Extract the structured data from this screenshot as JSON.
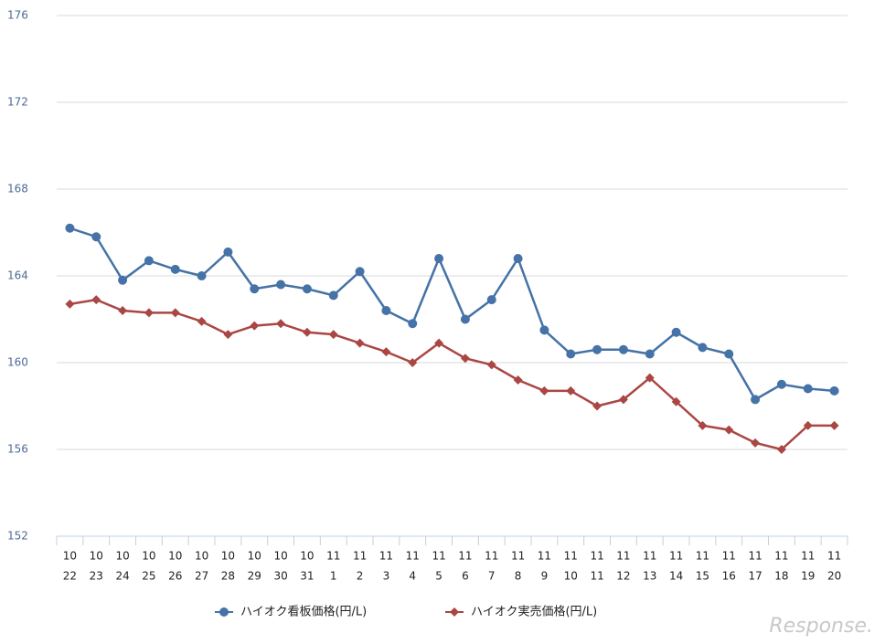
{
  "chart_data": {
    "type": "line",
    "categories": [
      [
        "10",
        "22"
      ],
      [
        "10",
        "23"
      ],
      [
        "10",
        "24"
      ],
      [
        "10",
        "25"
      ],
      [
        "10",
        "26"
      ],
      [
        "10",
        "27"
      ],
      [
        "10",
        "28"
      ],
      [
        "10",
        "29"
      ],
      [
        "10",
        "30"
      ],
      [
        "10",
        "31"
      ],
      [
        "11",
        "1"
      ],
      [
        "11",
        "2"
      ],
      [
        "11",
        "3"
      ],
      [
        "11",
        "4"
      ],
      [
        "11",
        "5"
      ],
      [
        "11",
        "6"
      ],
      [
        "11",
        "7"
      ],
      [
        "11",
        "8"
      ],
      [
        "11",
        "9"
      ],
      [
        "11",
        "10"
      ],
      [
        "11",
        "11"
      ],
      [
        "11",
        "12"
      ],
      [
        "11",
        "13"
      ],
      [
        "11",
        "14"
      ],
      [
        "11",
        "15"
      ],
      [
        "11",
        "16"
      ],
      [
        "11",
        "17"
      ],
      [
        "11",
        "18"
      ],
      [
        "11",
        "19"
      ],
      [
        "11",
        "20"
      ]
    ],
    "series": [
      {
        "name": "ハイオク看板価格(円/L)",
        "color": "#4572a7",
        "marker": "circle",
        "values": [
          166.2,
          165.8,
          163.8,
          164.7,
          164.3,
          164.0,
          165.1,
          163.4,
          163.6,
          163.4,
          163.1,
          164.2,
          162.4,
          161.8,
          164.8,
          162.0,
          162.9,
          164.8,
          161.5,
          160.4,
          160.6,
          160.6,
          160.4,
          161.4,
          160.7,
          160.4,
          158.3,
          159.0,
          158.8,
          158.7
        ]
      },
      {
        "name": "ハイオク実売価格(円/L)",
        "color": "#aa4643",
        "marker": "diamond",
        "values": [
          162.7,
          162.9,
          162.4,
          162.3,
          162.3,
          161.9,
          161.3,
          161.7,
          161.8,
          161.4,
          161.3,
          160.9,
          160.5,
          160.0,
          160.9,
          160.2,
          159.9,
          159.2,
          158.7,
          158.7,
          158.0,
          158.3,
          159.3,
          158.2,
          157.1,
          156.9,
          156.3,
          156.0,
          157.1,
          157.1
        ]
      }
    ],
    "ylim": [
      152,
      176
    ],
    "yticks": [
      152,
      156,
      160,
      164,
      168,
      172,
      176
    ],
    "grid": true,
    "legend": "bottom",
    "watermark": "Response."
  }
}
